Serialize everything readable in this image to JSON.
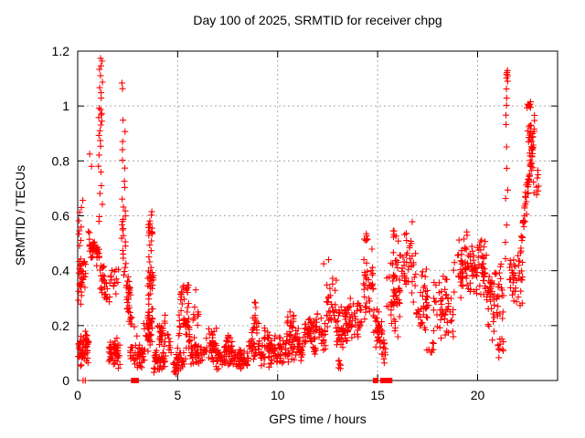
{
  "chart_data": {
    "type": "scatter",
    "title": "Day 100 of 2025, SRMTID for receiver chpg",
    "xlabel": "GPS time / hours",
    "ylabel": "SRMTID / TECUs",
    "xlim": [
      0,
      24
    ],
    "ylim": [
      0,
      1.2
    ],
    "grid": true,
    "legend": "none",
    "marker": "plus",
    "colors": {
      "marker": "#ff0000",
      "axis": "#000000",
      "grid": "#aaaaaa",
      "background": "#ffffff",
      "text": "#000000"
    },
    "xticks": [
      {
        "v": 0,
        "label": "0"
      },
      {
        "v": 5,
        "label": "5"
      },
      {
        "v": 10,
        "label": "10"
      },
      {
        "v": 15,
        "label": "15"
      },
      {
        "v": 20,
        "label": "20"
      }
    ],
    "yticks": [
      {
        "v": 0,
        "label": "0"
      },
      {
        "v": 0.2,
        "label": "0.2"
      },
      {
        "v": 0.4,
        "label": "0.4"
      },
      {
        "v": 0.6,
        "label": "0.6"
      },
      {
        "v": 0.8,
        "label": "0.8"
      },
      {
        "v": 1,
        "label": "1"
      },
      {
        "v": 1.2,
        "label": "1.2"
      }
    ],
    "scatter": {
      "comment_blobs": "dense clusters [x_start,x_end,y_min,y_max,count] in data units (hours, TECUs)",
      "blobs": [
        [
          0.02,
          0.55,
          0.04,
          0.19,
          55
        ],
        [
          0.05,
          0.42,
          0.29,
          0.46,
          22
        ],
        [
          0.5,
          0.95,
          0.4,
          0.57,
          22
        ],
        [
          0.69,
          1.1,
          0.43,
          0.52,
          16
        ],
        [
          1.1,
          1.5,
          0.3,
          0.44,
          20
        ],
        [
          1.3,
          1.6,
          0.26,
          0.35,
          10
        ],
        [
          1.55,
          2.15,
          0.04,
          0.16,
          55
        ],
        [
          1.6,
          2.05,
          0.3,
          0.43,
          14
        ],
        [
          2.35,
          2.7,
          0.3,
          0.4,
          16
        ],
        [
          2.6,
          3.35,
          0.04,
          0.14,
          45
        ],
        [
          3.3,
          3.55,
          0.14,
          0.28,
          8
        ],
        [
          3.5,
          3.74,
          0.52,
          0.585,
          8
        ],
        [
          3.55,
          3.8,
          0.34,
          0.41,
          10
        ],
        [
          3.4,
          3.8,
          0.1,
          0.3,
          24
        ],
        [
          3.8,
          4.4,
          0.02,
          0.12,
          40
        ],
        [
          4.0,
          4.45,
          0.1,
          0.25,
          18
        ],
        [
          4.88,
          5.45,
          0.02,
          0.13,
          30
        ],
        [
          5.05,
          5.6,
          0.13,
          0.27,
          25
        ],
        [
          5.1,
          5.55,
          0.24,
          0.385,
          20
        ],
        [
          5.55,
          6.45,
          0.04,
          0.17,
          48
        ],
        [
          5.75,
          6.05,
          0.18,
          0.28,
          8
        ],
        [
          6.5,
          6.95,
          0.05,
          0.21,
          30
        ],
        [
          6.9,
          7.4,
          0.03,
          0.15,
          32
        ],
        [
          7.35,
          7.8,
          0.04,
          0.18,
          32
        ],
        [
          7.75,
          8.2,
          0.02,
          0.12,
          26
        ],
        [
          8.15,
          8.55,
          0.03,
          0.13,
          20
        ],
        [
          8.55,
          9.2,
          0.05,
          0.16,
          18
        ],
        [
          9.2,
          10.3,
          0.04,
          0.17,
          70
        ],
        [
          9.3,
          9.6,
          0.12,
          0.21,
          10
        ],
        [
          10.35,
          11.35,
          0.06,
          0.2,
          65
        ],
        [
          10.45,
          10.8,
          0.16,
          0.255,
          14
        ],
        [
          11.35,
          12.4,
          0.09,
          0.25,
          70
        ],
        [
          12.45,
          12.95,
          0.16,
          0.4,
          30
        ],
        [
          12.9,
          13.6,
          0.11,
          0.28,
          50
        ],
        [
          13.0,
          13.15,
          0.03,
          0.1,
          6
        ],
        [
          13.5,
          14.2,
          0.15,
          0.32,
          40
        ],
        [
          14.25,
          14.8,
          0.2,
          0.5,
          35
        ],
        [
          14.3,
          14.6,
          0.48,
          0.55,
          6
        ],
        [
          14.75,
          15.25,
          0.1,
          0.28,
          25
        ],
        [
          15.45,
          16.15,
          0.12,
          0.52,
          55
        ],
        [
          15.7,
          16.1,
          0.5,
          0.56,
          6
        ],
        [
          15.18,
          15.42,
          0.04,
          0.16,
          10
        ],
        [
          16.2,
          16.9,
          0.28,
          0.56,
          38
        ],
        [
          16.9,
          17.55,
          0.14,
          0.42,
          38
        ],
        [
          17.45,
          17.8,
          0.07,
          0.16,
          8
        ],
        [
          17.8,
          18.3,
          0.13,
          0.4,
          26
        ],
        [
          18.35,
          18.85,
          0.1,
          0.46,
          30
        ],
        [
          19.0,
          19.8,
          0.25,
          0.56,
          55
        ],
        [
          19.8,
          20.45,
          0.28,
          0.52,
          48
        ],
        [
          20.45,
          21.3,
          0.14,
          0.45,
          55
        ],
        [
          21.0,
          21.3,
          0.07,
          0.17,
          10
        ],
        [
          21.6,
          22.25,
          0.26,
          0.46,
          35
        ],
        [
          22.5,
          22.95,
          0.84,
          0.95,
          18
        ],
        [
          22.45,
          22.7,
          0.97,
          1.02,
          8
        ],
        [
          22.75,
          23.05,
          0.64,
          0.8,
          10
        ]
      ],
      "comment_trails": "linear drifting runs [x0,x1,y0,y1,count,y_spread]",
      "trails": [
        [
          2.4,
          3.1,
          0.3,
          0.1,
          20,
          0.03
        ],
        [
          3.95,
          4.35,
          0.22,
          0.1,
          10,
          0.02
        ],
        [
          4.5,
          4.92,
          0.16,
          0.03,
          16,
          0.025
        ],
        [
          8.55,
          8.9,
          0.1,
          0.26,
          15,
          0.04
        ],
        [
          8.9,
          9.2,
          0.24,
          0.09,
          14,
          0.04
        ],
        [
          14.95,
          15.25,
          0.22,
          0.07,
          10,
          0.02
        ],
        [
          22.02,
          22.55,
          0.42,
          0.72,
          25,
          0.04
        ],
        [
          22.35,
          22.88,
          0.6,
          0.95,
          35,
          0.045
        ]
      ],
      "comment_vruns": "vertical spike columns [x_center,x_jitter,[y values]]",
      "vruns": [
        [
          1.13,
          0.11,
          [
            1.175,
            1.16,
            1.15,
            1.135,
            1.11,
            1.09,
            1.07,
            1.05,
            1.03,
            0.99,
            0.985,
            0.975,
            0.97,
            0.96,
            0.945,
            0.93,
            0.91,
            0.89,
            0.87,
            0.85,
            0.82,
            0.78,
            0.76,
            0.71,
            0.68,
            0.64,
            0.6,
            0.58
          ]
        ],
        [
          2.3,
          0.11,
          [
            1.085,
            1.065,
            0.95,
            0.91,
            0.87,
            0.84,
            0.8,
            0.77,
            0.73,
            0.7,
            0.66,
            0.63,
            0.615,
            0.6,
            0.59,
            0.58,
            0.57,
            0.555,
            0.545,
            0.53,
            0.52,
            0.505,
            0.49,
            0.475,
            0.46,
            0.445,
            0.43,
            0.415,
            0.4,
            0.385
          ]
        ],
        [
          3.62,
          0.12,
          [
            0.615,
            0.6,
            0.585,
            0.57,
            0.555,
            0.545,
            0.53,
            0.51,
            0.49,
            0.47,
            0.45,
            0.43,
            0.415,
            0.4,
            0.39,
            0.38,
            0.37,
            0.355,
            0.345,
            0.335,
            0.32,
            0.31,
            0.295,
            0.28,
            0.265,
            0.25,
            0.23,
            0.21,
            0.19,
            0.17,
            0.15,
            0.13,
            0.11
          ]
        ],
        [
          21.45,
          0.06,
          [
            1.13,
            1.125,
            1.115,
            1.11,
            1.1,
            1.09,
            1.06,
            1.03,
            1.0,
            0.965,
            0.93,
            0.85,
            0.77,
            0.69,
            0.66,
            0.57,
            0.5,
            0.44
          ]
        ],
        [
          0.15,
          0.13,
          [
            0.655,
            0.63,
            0.61,
            0.585,
            0.56,
            0.545,
            0.53,
            0.51,
            0.49,
            0.44,
            0.42,
            0.4,
            0.385,
            0.37,
            0.355,
            0.34,
            0.325,
            0.31,
            0.295,
            0.28
          ]
        ]
      ],
      "singles": [
        [
          0.6,
          0.825
        ],
        [
          0.69,
          0.78
        ],
        [
          5.9,
          0.33
        ],
        [
          8.85,
          0.285
        ],
        [
          10.62,
          0.25
        ],
        [
          12.3,
          0.425
        ],
        [
          12.55,
          0.44
        ],
        [
          16.73,
          0.578
        ]
      ],
      "zero_plus_x": [
        0.27,
        0.38
      ],
      "zero_square_x": [
        2.8,
        2.92,
        14.9,
        15.27,
        15.5,
        15.6
      ]
    }
  }
}
